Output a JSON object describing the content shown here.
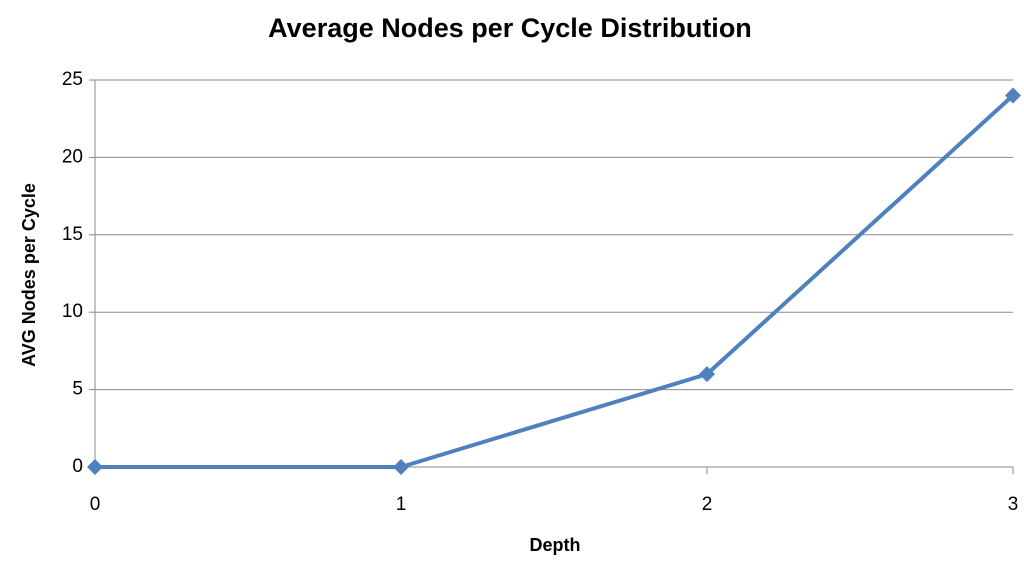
{
  "chart_data": {
    "type": "line",
    "title": "Average Nodes per Cycle Distribution",
    "x_label": "Depth",
    "y_label": "AVG Nodes per Cycle",
    "x": [
      0,
      1,
      2,
      3
    ],
    "series": [
      {
        "name": "AVG Nodes per Cycle",
        "color": "#4f81bd",
        "values": [
          0,
          0,
          6,
          24
        ]
      }
    ],
    "xlim": [
      0,
      3
    ],
    "xticks": [
      0,
      1,
      2,
      3
    ],
    "ylim": [
      0,
      25
    ],
    "yticks": [
      0,
      5,
      10,
      15,
      20,
      25
    ],
    "grid": true
  }
}
